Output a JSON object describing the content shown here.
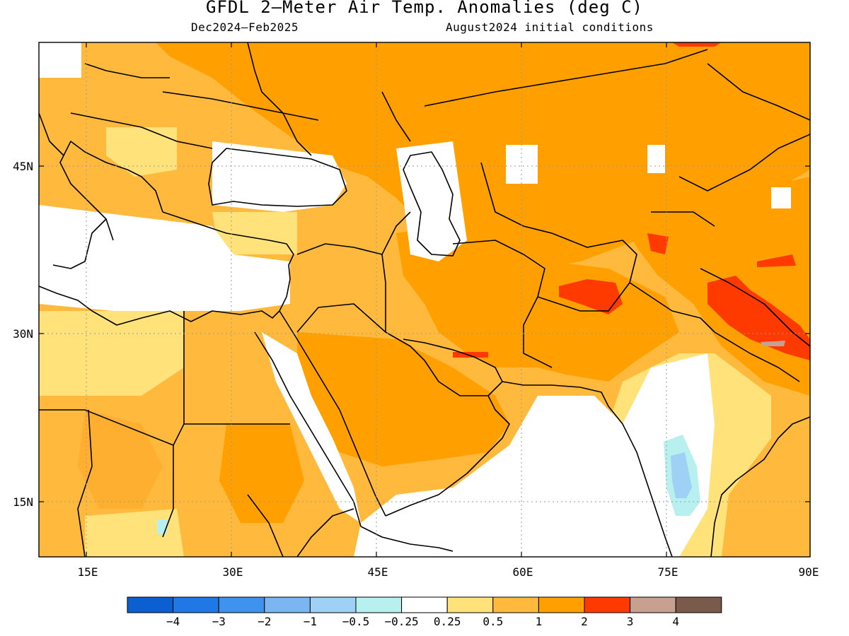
{
  "title": "GFDL 2—Meter Air Temp. Anomalies (deg C)",
  "season": "Dec2024—Feb2025",
  "init": "August2024 initial conditions",
  "map": {
    "region": "Middle East / South Asia",
    "lon_ticks": [
      "15E",
      "30E",
      "45E",
      "60E",
      "75E",
      "90E"
    ],
    "lat_ticks": [
      "45N",
      "30N",
      "15N"
    ],
    "gridlines": "dotted"
  },
  "colorbar": {
    "colors": [
      "#0b5fd1",
      "#1f78e6",
      "#3f93ef",
      "#7cb6f2",
      "#9fd0f6",
      "#b8f0f0",
      "#ffffff",
      "#ffe27a",
      "#ffb93d",
      "#ff9f00",
      "#ff3a00",
      "#c8a090",
      "#7a5a4a"
    ],
    "labels": [
      "−4",
      "−3",
      "−2",
      "−1",
      "−0.5",
      "−0.25",
      "0.25",
      "0.5",
      "1",
      "2",
      "3",
      "4"
    ]
  }
}
